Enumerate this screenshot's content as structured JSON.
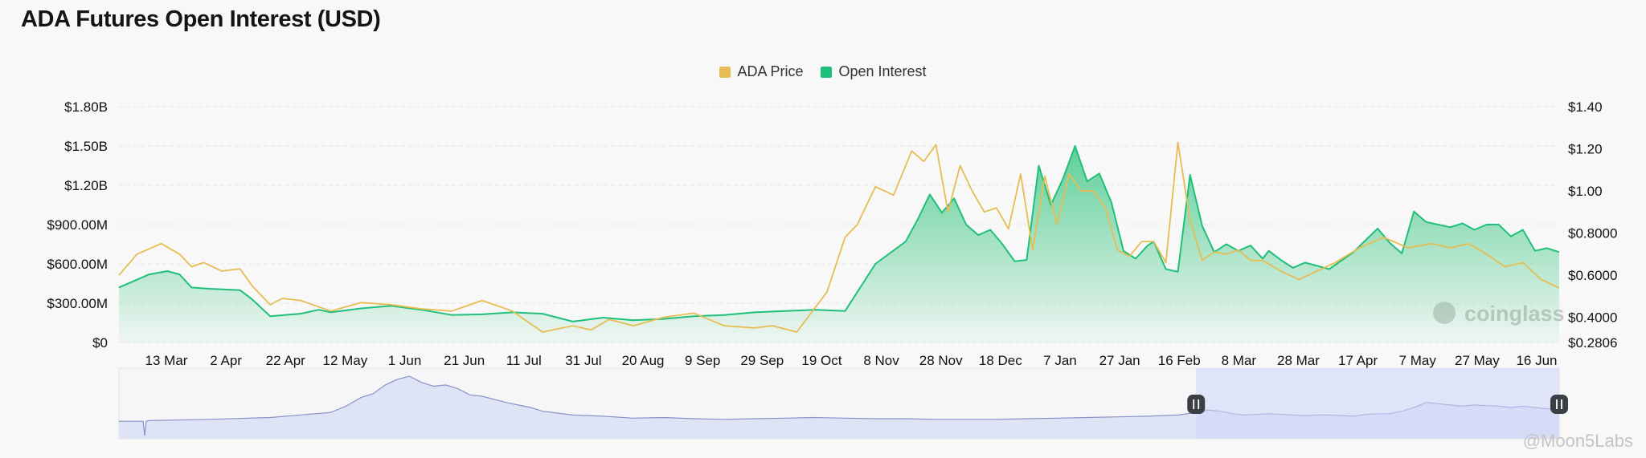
{
  "page": {
    "title": "ADA Futures Open Interest (USD)",
    "credit": "@Moon5Labs",
    "watermark": "coinglass"
  },
  "colors": {
    "price": "#e6bd52",
    "oi": "#1fc07a",
    "oi_fill_top": "#34c47e",
    "brush_line": "#8a92c8",
    "brush_fill": "#dfe3f6",
    "brush_selected": "#cdd5f7"
  },
  "chart_data": {
    "type": "line",
    "legend": [
      "ADA Price",
      "Open Interest"
    ],
    "legend_position": "top-center",
    "grid": true,
    "x_tick_labels": [
      "13 Mar",
      "2 Apr",
      "22 Apr",
      "12 May",
      "1 Jun",
      "21 Jun",
      "11 Jul",
      "31 Jul",
      "20 Aug",
      "9 Sep",
      "29 Sep",
      "19 Oct",
      "8 Nov",
      "28 Nov",
      "18 Dec",
      "7 Jan",
      "27 Jan",
      "16 Feb",
      "8 Mar",
      "28 Mar",
      "17 Apr",
      "7 May",
      "27 May",
      "16 Jun"
    ],
    "y_left": {
      "ticks": [
        0,
        300000000,
        600000000,
        900000000,
        1200000000,
        1500000000,
        1800000000
      ],
      "tick_labels": [
        "$0",
        "$300.00M",
        "$600.00M",
        "$900.00M",
        "$1.20B",
        "$1.50B",
        "$1.80B"
      ],
      "range": [
        0,
        1800000000
      ]
    },
    "y_right": {
      "ticks": [
        0.2806,
        0.4,
        0.6,
        0.8,
        1.0,
        1.2,
        1.4
      ],
      "tick_labels": [
        "$0.2806",
        "$0.4000",
        "$0.6000",
        "$0.8000",
        "$1.00",
        "$1.20",
        "$1.40"
      ],
      "range": [
        0.2806,
        1.4
      ]
    },
    "x_day_range": [
      0,
      476
    ],
    "series": [
      {
        "name": "Open Interest",
        "axis": "left",
        "x": [
          0,
          10,
          16,
          20,
          24,
          30,
          40,
          44,
          50,
          60,
          66,
          70,
          80,
          90,
          100,
          110,
          120,
          130,
          140,
          150,
          160,
          170,
          180,
          190,
          200,
          210,
          220,
          230,
          240,
          250,
          260,
          264,
          268,
          272,
          276,
          280,
          284,
          288,
          292,
          296,
          300,
          304,
          308,
          312,
          316,
          320,
          324,
          328,
          332,
          336,
          340,
          342,
          346,
          350,
          354,
          358,
          362,
          366,
          370,
          374,
          376,
          378,
          380,
          384,
          388,
          392,
          400,
          408,
          416,
          420,
          424,
          428,
          432,
          436,
          440,
          444,
          448,
          452,
          456,
          460,
          464,
          468,
          472,
          476
        ],
        "y": [
          420000000,
          520000000,
          545000000,
          520000000,
          420000000,
          410000000,
          400000000,
          330000000,
          200000000,
          220000000,
          250000000,
          230000000,
          260000000,
          280000000,
          250000000,
          210000000,
          215000000,
          230000000,
          220000000,
          160000000,
          190000000,
          170000000,
          180000000,
          200000000,
          210000000,
          230000000,
          240000000,
          250000000,
          240000000,
          600000000,
          770000000,
          940000000,
          1130000000,
          990000000,
          1100000000,
          900000000,
          820000000,
          860000000,
          750000000,
          620000000,
          630000000,
          1350000000,
          1050000000,
          1250000000,
          1500000000,
          1230000000,
          1290000000,
          1070000000,
          700000000,
          640000000,
          740000000,
          770000000,
          560000000,
          540000000,
          1280000000,
          890000000,
          690000000,
          750000000,
          700000000,
          740000000,
          690000000,
          640000000,
          700000000,
          630000000,
          570000000,
          610000000,
          560000000,
          690000000,
          870000000,
          760000000,
          680000000,
          1000000000,
          920000000,
          900000000,
          880000000,
          910000000,
          860000000,
          900000000,
          900000000,
          810000000,
          860000000,
          700000000,
          720000000,
          690000000
        ]
      },
      {
        "name": "ADA Price",
        "axis": "right",
        "x": [
          0,
          6,
          14,
          20,
          24,
          28,
          34,
          40,
          44,
          50,
          54,
          60,
          70,
          80,
          90,
          100,
          110,
          120,
          130,
          140,
          150,
          156,
          162,
          170,
          180,
          190,
          200,
          210,
          216,
          224,
          234,
          240,
          244,
          250,
          256,
          262,
          266,
          270,
          274,
          278,
          282,
          286,
          290,
          294,
          298,
          302,
          306,
          310,
          314,
          318,
          322,
          326,
          330,
          334,
          338,
          342,
          346,
          350,
          354,
          358,
          362,
          366,
          370,
          374,
          378,
          384,
          390,
          396,
          402,
          410,
          418,
          426,
          434,
          440,
          446,
          452,
          458,
          464,
          470,
          476
        ],
        "y": [
          0.6,
          0.7,
          0.75,
          0.7,
          0.64,
          0.66,
          0.62,
          0.63,
          0.55,
          0.46,
          0.49,
          0.48,
          0.43,
          0.47,
          0.46,
          0.44,
          0.43,
          0.48,
          0.43,
          0.33,
          0.36,
          0.34,
          0.39,
          0.36,
          0.4,
          0.42,
          0.36,
          0.35,
          0.36,
          0.33,
          0.52,
          0.78,
          0.84,
          1.02,
          0.98,
          1.19,
          1.14,
          1.22,
          0.9,
          1.12,
          1.0,
          0.9,
          0.92,
          0.82,
          1.08,
          0.72,
          1.07,
          0.84,
          1.08,
          1.0,
          1.0,
          0.92,
          0.72,
          0.69,
          0.76,
          0.76,
          0.66,
          1.23,
          0.86,
          0.67,
          0.71,
          0.7,
          0.72,
          0.67,
          0.67,
          0.62,
          0.58,
          0.62,
          0.66,
          0.73,
          0.78,
          0.73,
          0.75,
          0.73,
          0.75,
          0.7,
          0.64,
          0.66,
          0.58,
          0.54
        ]
      }
    ],
    "brush": {
      "overview_x": [
        0,
        5,
        8,
        8.5,
        9,
        10,
        30,
        50,
        70,
        75,
        80,
        84,
        88,
        92,
        96,
        100,
        104,
        108,
        112,
        116,
        120,
        128,
        136,
        140,
        150,
        160,
        170,
        180,
        190,
        200,
        210,
        220,
        230,
        240,
        250,
        260,
        270,
        280,
        290,
        300,
        310,
        320,
        330,
        340,
        350,
        356,
        360,
        364,
        368,
        372,
        376,
        380,
        384,
        388,
        392,
        396,
        400,
        404,
        408,
        412,
        416,
        420,
        424,
        428,
        432,
        436,
        440,
        444,
        448,
        452,
        456,
        460,
        464,
        468,
        472,
        476
      ],
      "overview_y": [
        0.28,
        0.28,
        0.28,
        0.05,
        0.28,
        0.29,
        0.31,
        0.34,
        0.42,
        0.52,
        0.66,
        0.72,
        0.86,
        0.95,
        1.0,
        0.9,
        0.84,
        0.86,
        0.8,
        0.7,
        0.68,
        0.58,
        0.5,
        0.44,
        0.38,
        0.36,
        0.33,
        0.34,
        0.32,
        0.31,
        0.32,
        0.33,
        0.34,
        0.33,
        0.32,
        0.32,
        0.31,
        0.31,
        0.31,
        0.32,
        0.33,
        0.34,
        0.35,
        0.36,
        0.38,
        0.42,
        0.46,
        0.44,
        0.4,
        0.38,
        0.39,
        0.4,
        0.39,
        0.38,
        0.37,
        0.38,
        0.38,
        0.37,
        0.36,
        0.39,
        0.4,
        0.4,
        0.44,
        0.5,
        0.58,
        0.56,
        0.54,
        0.52,
        0.54,
        0.53,
        0.52,
        0.5,
        0.52,
        0.5,
        0.48,
        0.46
      ],
      "selection_range": [
        356,
        476
      ]
    }
  }
}
